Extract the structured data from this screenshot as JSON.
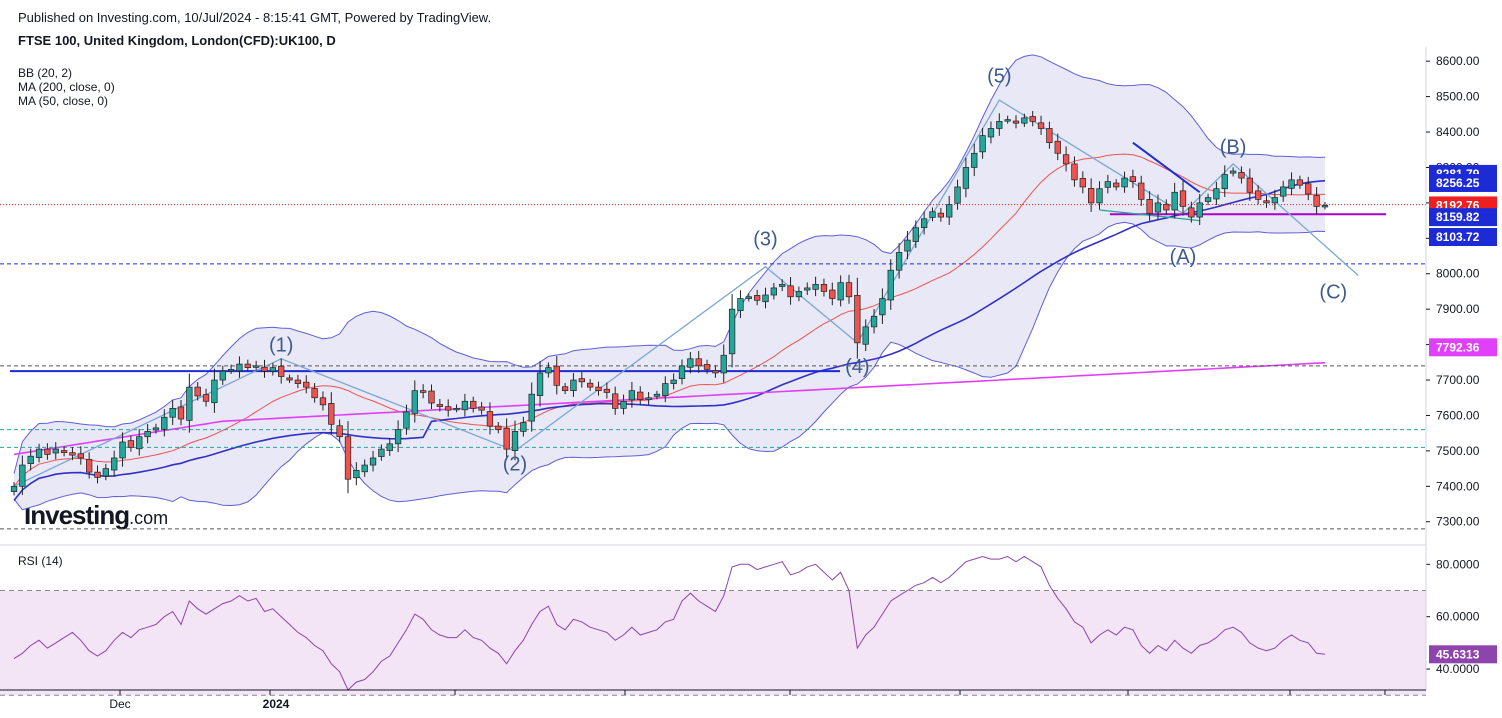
{
  "header": {
    "published": "Published on Investing.com, 10/Jul/2024 - 8:15:41 GMT, Powered by TradingView.",
    "instrument": "FTSE 100, United Kingdom, London(CFD):UK100, D"
  },
  "logo": {
    "main": "Investing",
    "suffix": ".com"
  },
  "indicators": [
    "BB (20, 2)",
    "MA (200, close, 0)",
    "MA (50, close, 0)"
  ],
  "rsi_label": "RSI (14)",
  "colors": {
    "up": "#26a69a",
    "down": "#ef5350",
    "bb": "#5f5fd6",
    "bb_fill": "#e8e8f6",
    "ma200": "#e040fb",
    "ma50": "#3030c8",
    "ma20": "#ef5350",
    "rsi": "#8e44ad",
    "rsi_fill": "#f3e5f5"
  },
  "chart_data": [
    {
      "type": "candlestick",
      "title": "FTSE 100, United Kingdom, London(CFD):UK100, D",
      "x_labels": [
        "Dec",
        "2024"
      ],
      "y_ticks": [
        7300,
        7400,
        7500,
        7600,
        7700,
        7800,
        7900,
        8000,
        8100,
        8200,
        8300,
        8400,
        8500,
        8600
      ],
      "y_tick_labels": [
        "7300.00",
        "7400.00",
        "7500.00",
        "7600.00",
        "7700.00",
        "7800.00",
        "7900.00",
        "8000.00",
        "8100.00",
        "8200.00",
        "8300.00",
        "8400.00",
        "8500.00",
        "8600.00"
      ],
      "ylim": [
        7240,
        8640
      ],
      "price_tags": [
        {
          "value": 8281.79,
          "label": "8281.79",
          "color": "#1c2bd6"
        },
        {
          "value": 8256.25,
          "label": "8256.25",
          "color": "#1c2bd6"
        },
        {
          "value": 8192.76,
          "label": "8192.76",
          "color": "#ef1f1f"
        },
        {
          "value": 8159.82,
          "label": "8159.82",
          "color": "#1c2bd6"
        },
        {
          "value": 8103.72,
          "label": "8103.72",
          "color": "#1c2bd6"
        },
        {
          "value": 7792.36,
          "label": "7792.36",
          "color": "#e040fb"
        }
      ],
      "wave_labels": [
        {
          "label": "(1)",
          "index": 32,
          "value": 7780
        },
        {
          "label": "(2)",
          "index": 60,
          "value": 7445
        },
        {
          "label": "(3)",
          "index": 90,
          "value": 8080
        },
        {
          "label": "(4)",
          "index": 101,
          "value": 7720
        },
        {
          "label": "(5)",
          "index": 118,
          "value": 8540
        },
        {
          "label": "(A)",
          "index": 140,
          "value": 8030
        },
        {
          "label": "(B)",
          "index": 146,
          "value": 8340
        },
        {
          "label": "(C)",
          "index": 158,
          "value": 7930
        }
      ],
      "closes": [
        7400,
        7460,
        7485,
        7505,
        7490,
        7505,
        7495,
        7488,
        7480,
        7440,
        7425,
        7450,
        7480,
        7525,
        7510,
        7540,
        7555,
        7565,
        7595,
        7620,
        7590,
        7680,
        7655,
        7640,
        7700,
        7725,
        7730,
        7745,
        7735,
        7740,
        7725,
        7735,
        7710,
        7700,
        7690,
        7680,
        7650,
        7630,
        7575,
        7540,
        7420,
        7445,
        7460,
        7480,
        7505,
        7520,
        7560,
        7610,
        7670,
        7665,
        7635,
        7625,
        7615,
        7620,
        7640,
        7620,
        7615,
        7570,
        7560,
        7505,
        7555,
        7580,
        7660,
        7720,
        7735,
        7685,
        7670,
        7700,
        7695,
        7680,
        7670,
        7665,
        7620,
        7640,
        7670,
        7645,
        7650,
        7660,
        7690,
        7700,
        7740,
        7760,
        7740,
        7730,
        7720,
        7770,
        7900,
        7930,
        7935,
        7925,
        7940,
        7960,
        7970,
        7935,
        7950,
        7960,
        7970,
        7950,
        7930,
        7975,
        7935,
        7805,
        7850,
        7880,
        7930,
        8010,
        8060,
        8095,
        8130,
        8155,
        8175,
        8160,
        8195,
        8245,
        8300,
        8340,
        8390,
        8410,
        8430,
        8435,
        8425,
        8440,
        8430,
        8410,
        8370,
        8340,
        8310,
        8265,
        8245,
        8200,
        8240,
        8260,
        8245,
        8270,
        8260,
        8210,
        8170,
        8200,
        8180,
        8230,
        8190,
        8160,
        8200,
        8215,
        8240,
        8280,
        8290,
        8270,
        8230,
        8210,
        8200,
        8215,
        8245,
        8265,
        8250,
        8225,
        8190,
        8192.76
      ],
      "indicator_overlays": [
        "BB (20, 2)",
        "MA (200, close, 0)",
        "MA (50, close, 0)"
      ]
    },
    {
      "type": "line",
      "title": "RSI (14)",
      "y_ticks": [
        40,
        60,
        80
      ],
      "y_tick_labels": [
        "40.0000",
        "60.0000",
        "80.0000"
      ],
      "ylim": [
        32,
        87
      ],
      "bands": [
        30,
        70
      ],
      "last_value": 45.6313,
      "last_label": "45.6313",
      "values": [
        44,
        46,
        49,
        51,
        48,
        50,
        52,
        54,
        51,
        47,
        45,
        47,
        51,
        54,
        52,
        55,
        56,
        57,
        60,
        62,
        57,
        66,
        63,
        61,
        63,
        65,
        66,
        68,
        66,
        67,
        62,
        63,
        60,
        57,
        54,
        52,
        49,
        47,
        42,
        39,
        32,
        35,
        36,
        39,
        43,
        45,
        50,
        55,
        61,
        59,
        55,
        53,
        52,
        52,
        55,
        52,
        51,
        48,
        46,
        42,
        47,
        51,
        57,
        62,
        64,
        57,
        55,
        59,
        58,
        56,
        55,
        54,
        51,
        53,
        56,
        53,
        54,
        55,
        58,
        59,
        66,
        69,
        66,
        64,
        62,
        68,
        79,
        80,
        80,
        78,
        79,
        80,
        81,
        76,
        77,
        79,
        80,
        77,
        74,
        77,
        70,
        48,
        53,
        56,
        61,
        66,
        68,
        70,
        72,
        73,
        75,
        73,
        75,
        78,
        81,
        82,
        83,
        82,
        82,
        83,
        81,
        83,
        81,
        79,
        72,
        67,
        63,
        58,
        56,
        50,
        53,
        55,
        53,
        56,
        55,
        49,
        46,
        49,
        47,
        51,
        48,
        46,
        49,
        50,
        52,
        55,
        56,
        54,
        50,
        48,
        47,
        48,
        51,
        53,
        51,
        50,
        46,
        45.6313
      ]
    }
  ]
}
